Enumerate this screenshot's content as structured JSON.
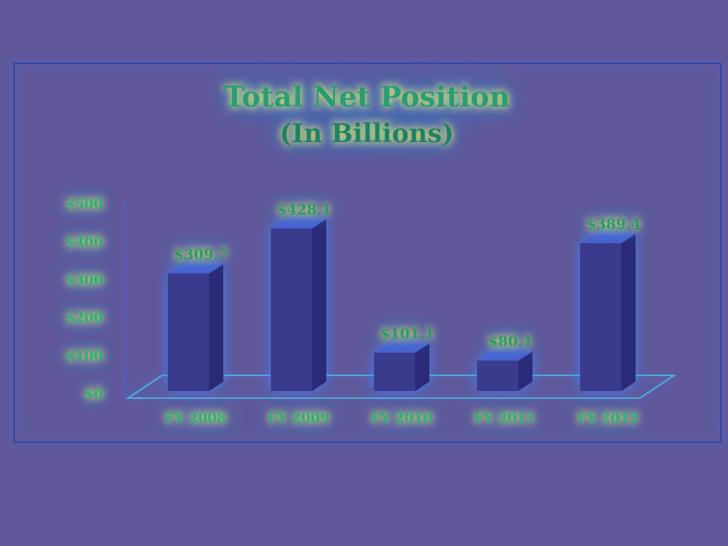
{
  "chart_data": {
    "type": "bar",
    "title_line1": "Total Net Position",
    "title_line2": "(In Billions)",
    "categories": [
      "FY 2008",
      "FY 2009",
      "FY 2010",
      "FY 2011",
      "FY 2012"
    ],
    "values": [
      309.7,
      428.1,
      101.1,
      80.1,
      389.4
    ],
    "value_labels": [
      "$309.7",
      "$428.1",
      "$101.1",
      "$80.1",
      "$389.4"
    ],
    "y_ticks": [
      0,
      100,
      200,
      300,
      400,
      500
    ],
    "y_tick_labels": [
      "$0",
      "$100",
      "$200",
      "$300",
      "$400",
      "$500"
    ],
    "ylim": [
      0,
      500
    ],
    "grid": false,
    "legend": "none",
    "three_d": true
  },
  "colors": {
    "background": "#5f5799",
    "bar_front": "#3a3a8e",
    "bar_side": "#2c2c78",
    "bar_top": "#4d5fd0",
    "glow_core": "#d9ef3a",
    "glow_mid": "#2fd39a",
    "glow_edge": "#3f8cff",
    "text": "#26a06a",
    "frame": "#3344a8"
  }
}
